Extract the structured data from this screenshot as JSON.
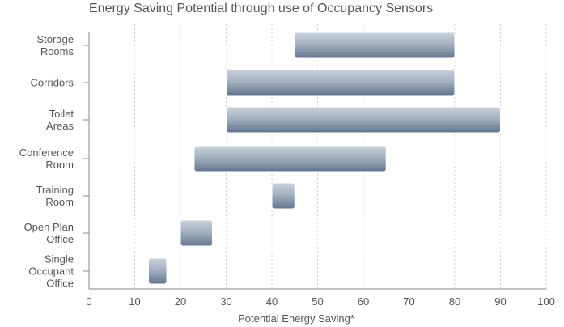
{
  "chart_data": {
    "type": "bar",
    "orientation": "horizontal-range",
    "title": "Energy Saving Potential through use of Occupancy Sensors",
    "xlabel": "Potential Energy Saving*",
    "ylabel": "",
    "xlim": [
      0,
      100
    ],
    "xticks": [
      0,
      10,
      20,
      30,
      40,
      50,
      60,
      70,
      80,
      90,
      100
    ],
    "grid": "vertical-dotted",
    "categories": [
      [
        "Storage",
        "Rooms"
      ],
      [
        "Corridors"
      ],
      [
        "Toilet",
        "Areas"
      ],
      [
        "Conference",
        "Room"
      ],
      [
        "Training",
        "Room"
      ],
      [
        "Open Plan",
        "Office"
      ],
      [
        "Single",
        "Occupant",
        "Office"
      ]
    ],
    "ranges": [
      [
        45,
        80
      ],
      [
        30,
        80
      ],
      [
        30,
        90
      ],
      [
        23,
        65
      ],
      [
        40,
        45
      ],
      [
        20,
        27
      ],
      [
        13,
        17
      ]
    ],
    "colors": {
      "bar_top": "#c9d2dd",
      "bar_bottom": "#62748e",
      "axis": "#8a8a8a",
      "grid": "#cfcfcf",
      "text": "#555555"
    }
  }
}
